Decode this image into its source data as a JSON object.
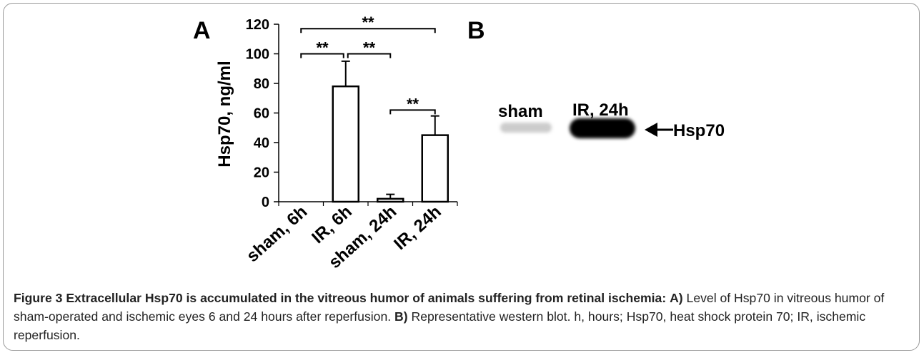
{
  "panel_a": {
    "label": "A",
    "chart_data": {
      "type": "bar",
      "categories": [
        "sham, 6h",
        "IR, 6h",
        "sham, 24h",
        "IR, 24h"
      ],
      "values": [
        0,
        78,
        2,
        45
      ],
      "error": [
        0,
        17,
        3,
        13
      ],
      "ylabel": "Hsp70, ng/ml",
      "xlabel": "",
      "ylim": [
        0,
        120
      ],
      "yticks": [
        0,
        20,
        40,
        60,
        80,
        100,
        120
      ],
      "significance": [
        {
          "from": 0,
          "to": 1,
          "label": "**"
        },
        {
          "from": 1,
          "to": 2,
          "label": "**"
        },
        {
          "from": 0,
          "to": 3,
          "label": "**"
        },
        {
          "from": 2,
          "to": 3,
          "label": "**"
        }
      ]
    }
  },
  "panel_b": {
    "label": "B",
    "lane_labels": [
      "sham",
      "IR, 24h"
    ],
    "arrow_label": "Hsp70",
    "band_intensity": [
      0.2,
      1.0
    ]
  },
  "caption": {
    "title": "Figure 3 Extracellular Hsp70 is accumulated in the vitreous humor of animals suffering from retinal ischemia:",
    "a_label": "A)",
    "a_text": "Level of Hsp70 in vitreous humor of sham-operated and ischemic eyes 6 and 24 hours after reperfusion.",
    "b_label": "B)",
    "b_text": "Representative western blot. h, hours; Hsp70, heat shock protein 70; IR, ischemic reperfusion."
  }
}
